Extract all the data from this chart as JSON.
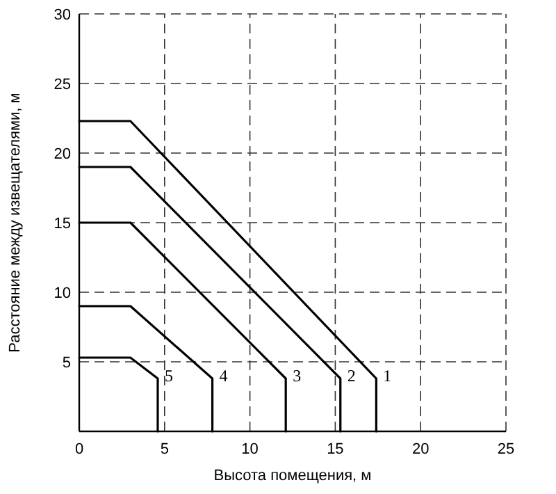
{
  "chart_data": {
    "type": "line",
    "xlabel": "Высота помещения, м",
    "ylabel": "Расстояние между извещателями, м",
    "xlim": [
      0,
      25
    ],
    "ylim": [
      0,
      30
    ],
    "xticks": [
      0,
      5,
      10,
      15,
      20,
      25
    ],
    "yticks": [
      {
        "value": 0,
        "label": null
      },
      5,
      10,
      15,
      20,
      25,
      30
    ],
    "grid": true,
    "marker": "none",
    "line_style": "solid",
    "series": [
      {
        "name": "1",
        "color": "#000000",
        "x": [
          0,
          3,
          17.4,
          17.4
        ],
        "values": [
          22.3,
          22.3,
          3.8,
          0
        ]
      },
      {
        "name": "2",
        "color": "#000000",
        "x": [
          0,
          3,
          15.3,
          15.3
        ],
        "values": [
          19,
          19,
          3.8,
          0
        ]
      },
      {
        "name": "3",
        "color": "#000000",
        "x": [
          0,
          3,
          12.1,
          12.1
        ],
        "values": [
          15,
          15,
          3.8,
          0
        ]
      },
      {
        "name": "4",
        "color": "#000000",
        "x": [
          0,
          3,
          7.8,
          7.8
        ],
        "values": [
          9,
          9,
          3.8,
          0
        ]
      },
      {
        "name": "5",
        "color": "#000000",
        "x": [
          0,
          3,
          4.6,
          4.6
        ],
        "values": [
          5.3,
          5.3,
          3.8,
          0
        ]
      }
    ]
  }
}
